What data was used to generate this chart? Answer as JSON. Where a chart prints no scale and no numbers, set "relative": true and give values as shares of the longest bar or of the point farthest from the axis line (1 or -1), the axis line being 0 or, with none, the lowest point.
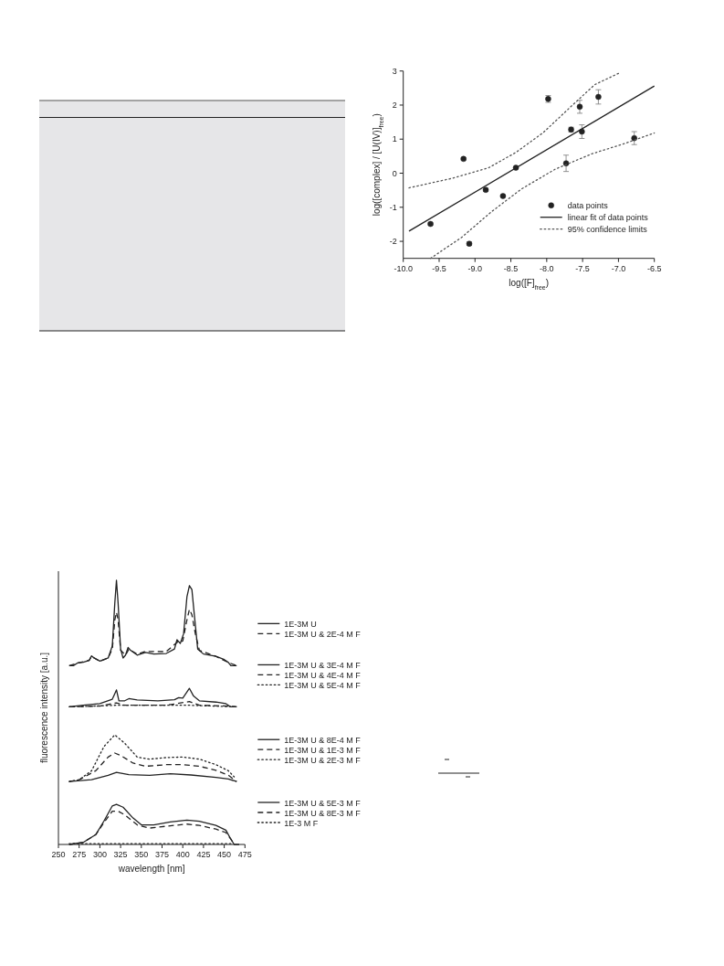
{
  "chart_data": [
    {
      "type": "scatter",
      "xlabel": "log([F]$_{free}$)",
      "ylabel": "log([complex] / [U(IV)]$_{free}$)",
      "xlim": [
        -10,
        -6.5
      ],
      "ylim": [
        -2.5,
        3
      ],
      "xticks": [
        {
          "value": -10,
          "label": "-10.0"
        },
        {
          "value": -9.5,
          "label": "-9.5"
        },
        {
          "value": -9,
          "label": "-9.0"
        },
        {
          "value": -8.5,
          "label": "-8.5"
        },
        {
          "value": -8,
          "label": "-8.0"
        },
        {
          "value": -7.5,
          "label": "-7.5"
        },
        {
          "value": -7,
          "label": "-7.0"
        },
        {
          "value": -6.5,
          "label": "-6.5"
        }
      ],
      "yticks": [
        -2,
        -1,
        0,
        1,
        2,
        3
      ],
      "legend": "bottom right",
      "series": [
        {
          "name": "data points",
          "marker": "circle",
          "color": "#222222",
          "x": [
            -9.62,
            -9.16,
            -9.08,
            -8.85,
            -8.61,
            -8.43,
            -7.98,
            -7.73,
            -7.66,
            -7.54,
            -7.51,
            -7.28,
            -6.78
          ],
          "values": [
            -1.49,
            0.42,
            -2.07,
            -0.49,
            -0.67,
            0.16,
            2.18,
            0.29,
            1.28,
            1.95,
            1.22,
            2.24,
            1.03
          ],
          "errors": [
            0.03,
            0.03,
            0.05,
            0.04,
            0.03,
            0.02,
            0.1,
            0.24,
            0.07,
            0.19,
            0.2,
            0.21,
            0.19
          ]
        },
        {
          "name": "linear fit of data points",
          "type": "line",
          "line_style": "solid",
          "color": "#222222",
          "x": [
            -9.92,
            -6.5
          ],
          "values": [
            -1.7,
            2.56
          ]
        },
        {
          "name": "95% confidence limits",
          "type": "line",
          "line_style": "dotted",
          "color": "#555555",
          "x": [
            -9.92,
            -9.32,
            -8.81,
            -8.43,
            -8.05,
            -7.62,
            -7.33,
            -6.97
          ],
          "values": [
            -0.43,
            -0.15,
            0.16,
            0.61,
            1.19,
            2.04,
            2.6,
            2.96
          ]
        },
        {
          "type": "line",
          "line_style": "dotted",
          "color": "#555555",
          "x": [
            -9.62,
            -9.19,
            -8.77,
            -8.35,
            -7.88,
            -7.37,
            -6.9,
            -6.5
          ],
          "values": [
            -2.5,
            -1.89,
            -1.13,
            -0.46,
            0.12,
            0.57,
            0.88,
            1.18
          ]
        }
      ]
    },
    {
      "type": "line",
      "relative": true,
      "xlabel": "wavelength [nm]",
      "ylabel": "fluorescence intensity [a.u.]",
      "xlim": [
        250,
        475
      ],
      "xticks": [
        250,
        275,
        300,
        325,
        350,
        375,
        400,
        425,
        450,
        475
      ],
      "tick_labels": "x",
      "legend": "right",
      "series": [
        {
          "name": "1E-3M U",
          "line_style": "solid",
          "color": "#222222",
          "x": [
            263,
            268,
            273,
            280,
            287,
            290,
            293,
            300,
            310,
            315,
            318,
            320,
            322,
            325,
            328,
            331,
            334,
            337,
            345,
            355,
            365,
            380,
            390,
            393,
            397,
            401,
            405,
            408,
            411,
            414,
            418,
            425,
            440,
            450,
            455,
            458,
            465
          ],
          "values": [
            0.677,
            0.677,
            0.687,
            0.69,
            0.697,
            0.714,
            0.706,
            0.694,
            0.706,
            0.752,
            0.913,
            1.0,
            0.913,
            0.74,
            0.706,
            0.717,
            0.746,
            0.735,
            0.717,
            0.727,
            0.721,
            0.723,
            0.74,
            0.775,
            0.761,
            0.798,
            0.937,
            0.98,
            0.965,
            0.867,
            0.74,
            0.721,
            0.712,
            0.7,
            0.689,
            0.677,
            0.677
          ]
        },
        {
          "name": "1E-3M U & 2E-4 M F",
          "line_style": "dashed",
          "color": "#222222",
          "x": [
            263,
            273,
            287,
            290,
            300,
            310,
            315,
            318,
            320,
            322,
            325,
            331,
            335,
            345,
            355,
            380,
            393,
            400,
            405,
            408,
            411,
            415,
            420,
            440,
            455,
            465
          ],
          "values": [
            0.677,
            0.687,
            0.697,
            0.712,
            0.694,
            0.706,
            0.74,
            0.85,
            0.879,
            0.85,
            0.735,
            0.717,
            0.74,
            0.72,
            0.731,
            0.73,
            0.765,
            0.77,
            0.85,
            0.89,
            0.87,
            0.8,
            0.735,
            0.712,
            0.689,
            0.677
          ]
        },
        {
          "name": "1E-3M U & 3E-4 M F",
          "line_style": "solid",
          "color": "#222222",
          "x": [
            263,
            280,
            300,
            315,
            320,
            323,
            330,
            335,
            345,
            370,
            390,
            395,
            400,
            408,
            413,
            420,
            440,
            452,
            458,
            465
          ],
          "values": [
            0.521,
            0.527,
            0.533,
            0.55,
            0.585,
            0.544,
            0.544,
            0.552,
            0.547,
            0.544,
            0.548,
            0.556,
            0.554,
            0.591,
            0.562,
            0.544,
            0.539,
            0.533,
            0.521,
            0.521
          ]
        },
        {
          "name": "1E-3M U & 4E-4 M F",
          "line_style": "dashed",
          "color": "#222222",
          "x": [
            263,
            300,
            320,
            330,
            380,
            408,
            420,
            455,
            465
          ],
          "values": [
            0.521,
            0.524,
            0.536,
            0.527,
            0.527,
            0.541,
            0.527,
            0.524,
            0.521
          ]
        },
        {
          "name": "1E-3M U & 5E-4 M F",
          "line_style": "dotted",
          "color": "#222222",
          "x": [
            263,
            320,
            408,
            465
          ],
          "values": [
            0.521,
            0.527,
            0.527,
            0.521
          ]
        },
        {
          "name": "1E-3M U & 8E-4 M F",
          "line_style": "solid",
          "color": "#222222",
          "x": [
            263,
            290,
            310,
            320,
            335,
            360,
            385,
            410,
            440,
            455,
            465
          ],
          "values": [
            0.238,
            0.245,
            0.262,
            0.273,
            0.264,
            0.262,
            0.268,
            0.263,
            0.254,
            0.248,
            0.238
          ]
        },
        {
          "name": "1E-3M U & 1E-3 M F",
          "line_style": "dashed",
          "color": "#222222",
          "x": [
            263,
            275,
            295,
            310,
            318,
            325,
            340,
            355,
            380,
            400,
            420,
            440,
            455,
            465
          ],
          "values": [
            0.238,
            0.245,
            0.279,
            0.331,
            0.346,
            0.337,
            0.308,
            0.296,
            0.302,
            0.302,
            0.296,
            0.281,
            0.262,
            0.238
          ]
        },
        {
          "name": "1E-3M U & 2E-3 M F",
          "line_style": "dotted",
          "color": "#222222",
          "x": [
            263,
            275,
            290,
            305,
            318,
            330,
            345,
            360,
            380,
            400,
            420,
            440,
            455,
            462
          ],
          "values": [
            0.238,
            0.245,
            0.279,
            0.371,
            0.415,
            0.383,
            0.331,
            0.323,
            0.329,
            0.331,
            0.323,
            0.302,
            0.279,
            0.256
          ]
        },
        {
          "name": "1E-3M U & 5E-3 M F",
          "line_style": "solid",
          "color": "#222222",
          "x": [
            263,
            280,
            295,
            305,
            315,
            320,
            328,
            340,
            350,
            365,
            385,
            405,
            420,
            440,
            452,
            458,
            462,
            468
          ],
          "values": [
            0,
            0.008,
            0.037,
            0.089,
            0.146,
            0.152,
            0.141,
            0.1,
            0.074,
            0.074,
            0.085,
            0.092,
            0.088,
            0.072,
            0.054,
            0.02,
            0,
            0
          ]
        },
        {
          "name": "1E-3M U & 8E-3 M F",
          "line_style": "dashed",
          "color": "#222222",
          "x": [
            263,
            280,
            295,
            305,
            315,
            322,
            330,
            345,
            360,
            380,
            405,
            420,
            440,
            452,
            458,
            462
          ],
          "values": [
            0,
            0.008,
            0.037,
            0.083,
            0.126,
            0.126,
            0.112,
            0.074,
            0.062,
            0.069,
            0.077,
            0.072,
            0.058,
            0.045,
            0.02,
            0
          ]
        },
        {
          "name": "1E-3 M F",
          "line_style": "dotted",
          "color": "#222222",
          "x": [
            263,
            460
          ],
          "values": [
            0.003,
            0.003
          ]
        }
      ]
    }
  ]
}
